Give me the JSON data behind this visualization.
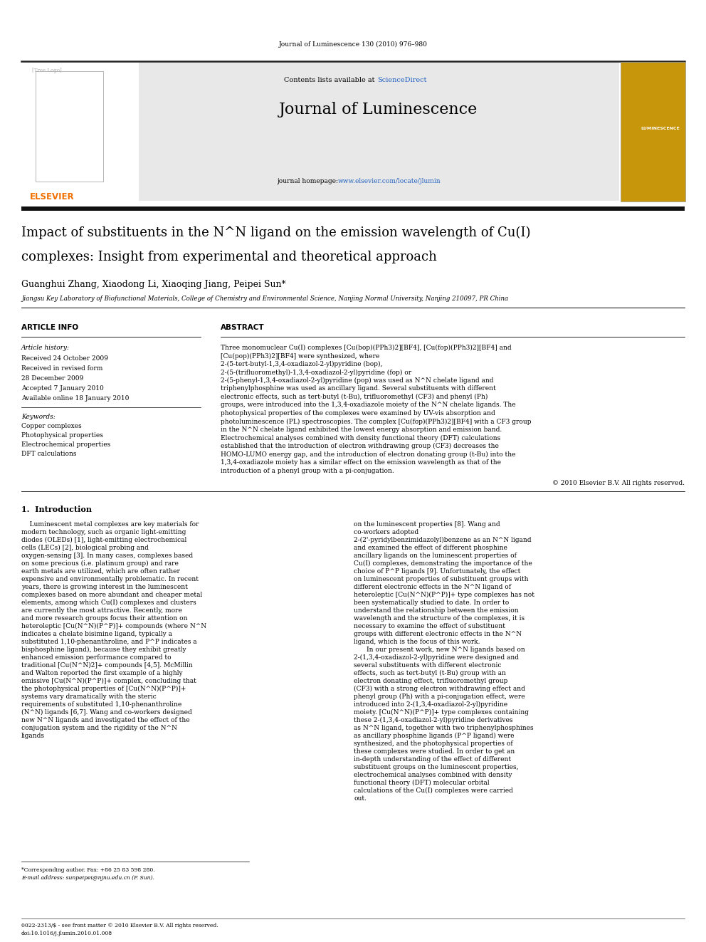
{
  "page_width": 9.92,
  "page_height": 13.23,
  "background_color": "#ffffff",
  "journal_ref": "Journal of Luminescence 130 (2010) 976–980",
  "header_bg": "#e6e6e6",
  "header_text_before": "Contents lists available at ",
  "header_text_link": "ScienceDirect",
  "sciencedirect_color": "#2060c0",
  "journal_title": "Journal of Luminescence",
  "journal_homepage_label": "journal homepage: ",
  "journal_homepage_url": "www.elsevier.com/locate/jlumin",
  "paper_title_line1": "Impact of substituents in the N^N ligand on the emission wavelength of Cu(I)",
  "paper_title_line2": "complexes: Insight from experimental and theoretical approach",
  "authors": "Guanghui Zhang, Xiaodong Li, Xiaoqing Jiang, Peipei Sun*",
  "affiliation": "Jiangsu Key Laboratory of Biofunctional Materials, College of Chemistry and Environmental Science, Nanjing Normal University, Nanjing 210097, PR China",
  "article_info_title": "ARTICLE INFO",
  "abstract_title": "ABSTRACT",
  "article_history_label": "Article history:",
  "received_date": "Received 24 October 2009",
  "received_revised": "Received in revised form",
  "revised_date": "28 December 2009",
  "accepted": "Accepted 7 January 2010",
  "available": "Available online 18 January 2010",
  "keywords_label": "Keywords:",
  "keywords": [
    "Copper complexes",
    "Photophysical properties",
    "Electrochemical properties",
    "DFT calculations"
  ],
  "abstract_text": "Three monomuclear Cu(I) complexes [Cu(bop)(PPh3)2][BF4], [Cu(fop)(PPh3)2][BF4] and [Cu(pop)(PPh3)2][BF4] were synthesized, where 2-(5-tert-butyl-1,3,4-oxadiazol-2-yl)pyridine (bop), 2-(5-(trifluoromethyl)-1,3,4-oxadiazol-2-yl)pyridine (fop) or 2-(5-phenyl-1,3,4-oxadiazol-2-yl)pyridine (pop) was used as N^N chelate ligand and triphenylphosphine was used as ancillary ligand. Several substituents with different electronic effects, such as tert-butyl (t-Bu), trifluoromethyl (CF3) and phenyl (Ph) groups, were introduced into the 1,3,4-oxadiazole moiety of the N^N chelate ligands. The photophysical properties of the complexes were examined by UV-vis absorption and photoluminescence (PL) spectroscopies. The complex [Cu(fop)(PPh3)2][BF4] with a CF3 group in the N^N chelate ligand exhibited the lowest energy absorption and emission band. Electrochemical analyses combined with density functional theory (DFT) calculations established that the introduction of electron withdrawing group (CF3) decreases the HOMO-LUMO energy gap, and the introduction of electron donating group (t-Bu) into the 1,3,4-oxadiazole moiety has a similar effect on the emission wavelength as that of the introduction of a phenyl group with a pi-conjugation.",
  "copyright": "© 2010 Elsevier B.V. All rights reserved.",
  "section1_title": "1.  Introduction",
  "intro_col1": "    Luminescent metal complexes are key materials for modern technology, such as organic light-emitting diodes (OLEDs) [1], light-emitting electrochemical cells (LECs) [2], biological probing and oxygen-sensing [3]. In many cases, complexes based on some precious (i.e. platinum group) and rare earth metals are utilized, which are often rather expensive and environmentally problematic. In recent years, there is growing interest in the luminescent complexes based on more abundant and cheaper metal elements, among which Cu(I) complexes and clusters are currently the most attractive. Recently, more and more research groups focus their attention on heteroleptic [Cu(N^N)(P^P)]+ compounds (where N^N indicates a chelate bisimine ligand, typically a substituted 1,10-phenanthroline, and P^P indicates a bisphosphine ligand), because they exhibit greatly enhanced emission performance compared to traditional [Cu(N^N)2]+ compounds [4,5]. McMillin and Walton reported the first example of a highly emissive [Cu(N^N)(P^P)]+ complex, concluding that the photophysical properties of [Cu(N^N)(P^P)]+ systems vary dramatically with the steric requirements of substituted 1,10-phenanthroline (N^N) ligands [6,7]. Wang and co-workers designed new N^N ligands and investigated the effect of the conjugation system and the rigidity of the N^N ligands",
  "intro_col2": "on the luminescent properties [8]. Wang and co-workers adopted 2-(2'-pyridylbenzimidazolyl)benzene as an N^N ligand and examined the effect of different phosphine ancillary ligands on the luminescent properties of Cu(I) complexes, demonstrating the importance of the choice of P^P ligands [9]. Unfortunately, the effect on luminescent properties of substituent groups with different electronic effects in the N^N ligand of heteroleptic [Cu(N^N)(P^P)]+ type complexes has not been systematically studied to date. In order to understand the relationship between the emission wavelength and the structure of the complexes, it is necessary to examine the effect of substituent groups with different electronic effects in the N^N ligand, which is the focus of this work.\n    In our present work, new N^N ligands based on 2-(1,3,4-oxadiazol-2-yl)pyridine were designed and several substituents with different electronic effects, such as tert-butyl (t-Bu) group with an electron donating effect, trifluoromethyl group (CF3) with a strong electron withdrawing effect and phenyl group (Ph) with a pi-conjugation effect, were introduced into 2-(1,3,4-oxadiazol-2-yl)pyridine moiety. [Cu(N^N)(P^P)]+ type complexes containing these 2-(1,3,4-oxadiazol-2-yl)pyridine derivatives as N^N ligand, together with two triphenylphosphines as ancillary phosphine ligands (P^P ligand) were synthesized, and the photophysical properties of these complexes were studied. In order to get an in-depth understanding of the effect of different substituent groups on the luminescent properties, electrochemical analyses combined with density functional theory (DFT) molecular orbital calculations of the Cu(I) complexes were carried out.",
  "footnote_star": "*Corresponding author. Fax: +86 25 83 598 280.",
  "footnote_email": "E-mail address: sunpeipei@njnu.edu.cn (P. Sun).",
  "footer_issn": "0022-2313/$ - see front matter © 2010 Elsevier B.V. All rights reserved.",
  "footer_doi": "doi:10.1016/j.jlumin.2010.01.008",
  "elsevier_color": "#f07000",
  "black_bar_color": "#111111"
}
